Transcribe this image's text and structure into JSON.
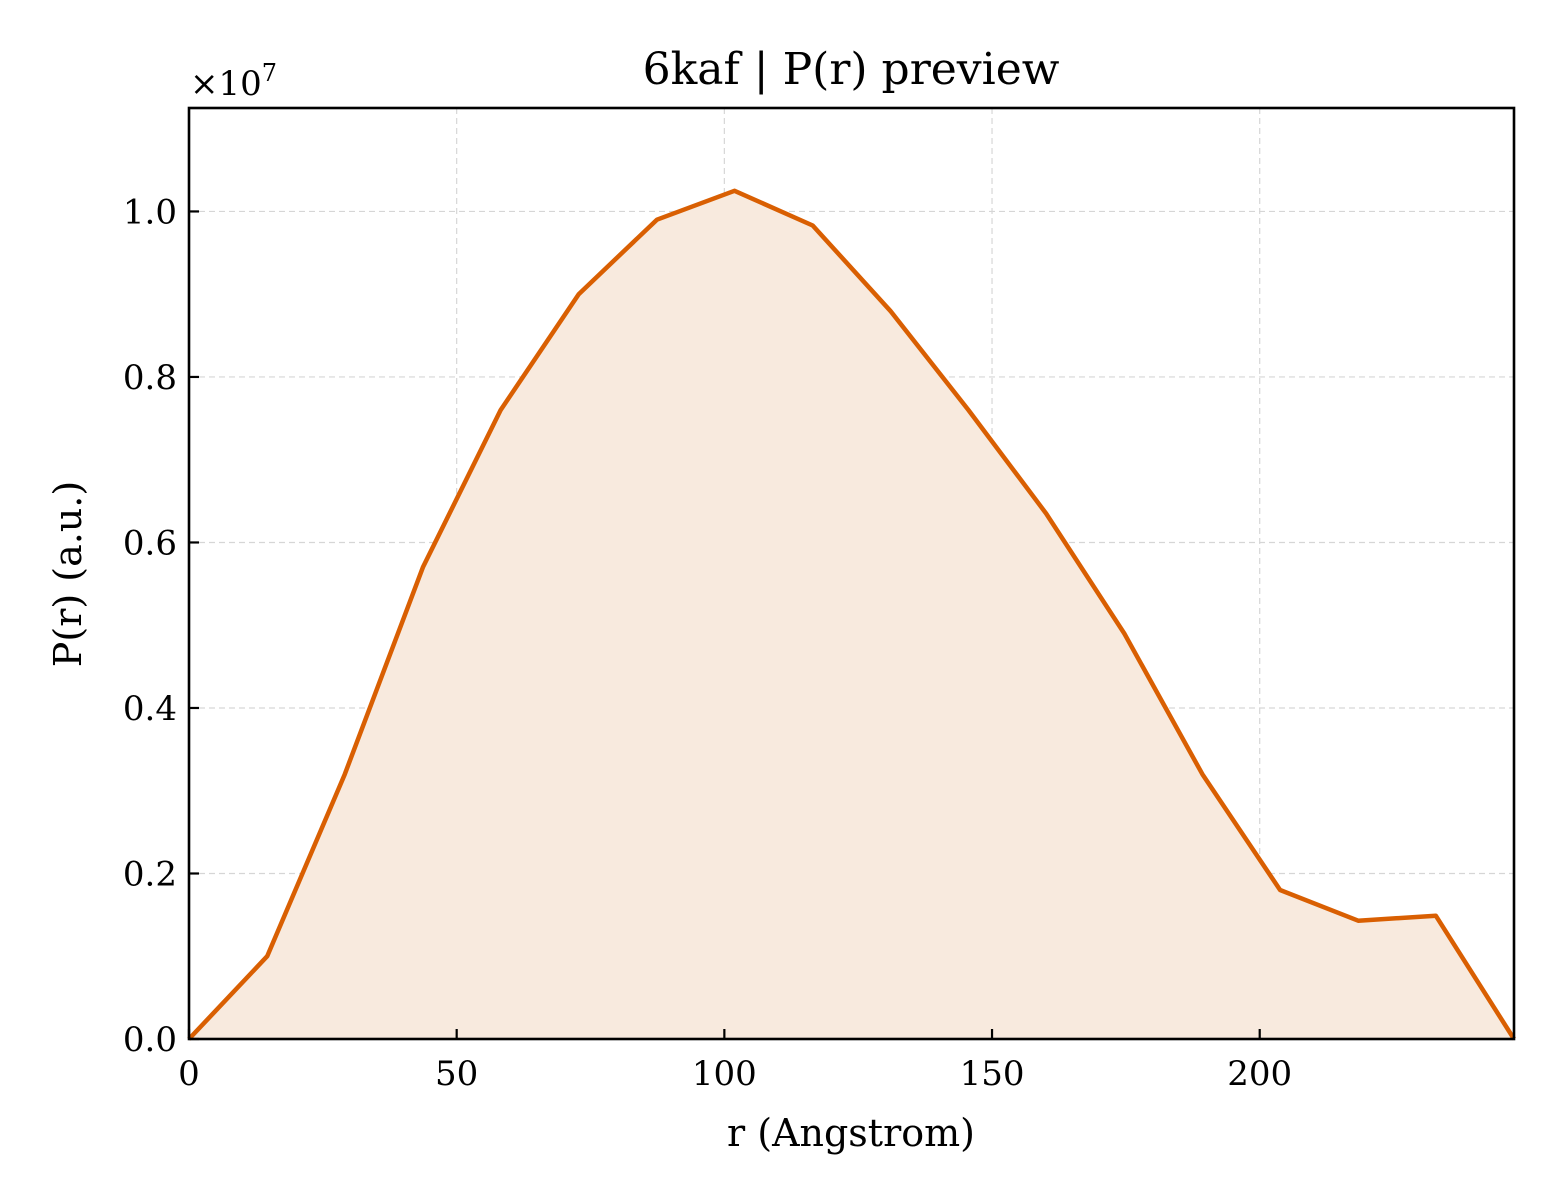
{
  "chart_data": {
    "type": "area",
    "title": "6kaf | P(r) preview",
    "xlabel": "r (Angstrom)",
    "ylabel": "P(r) (a.u.)",
    "y_multiplier_label": "×10",
    "y_multiplier_exponent": "7",
    "xlim": [
      0,
      247.5
    ],
    "ylim": [
      0,
      1.125
    ],
    "xticks": [
      0,
      50,
      100,
      150,
      200
    ],
    "xtick_labels": [
      "0",
      "50",
      "100",
      "150",
      "200"
    ],
    "yticks": [
      0.0,
      0.2,
      0.4,
      0.6,
      0.8,
      1.0
    ],
    "ytick_labels": [
      "0.0",
      "0.2",
      "0.4",
      "0.6",
      "0.8",
      "1.0"
    ],
    "grid": true,
    "series": [
      {
        "x": [
          0,
          14.6,
          29.1,
          43.7,
          58.2,
          72.8,
          87.4,
          101.9,
          116.5,
          131.0,
          145.6,
          160.1,
          174.7,
          189.3,
          203.8,
          218.4,
          232.9,
          247.5
        ],
        "y": [
          0.0,
          0.1,
          0.32,
          0.57,
          0.76,
          0.9,
          0.99,
          1.025,
          0.983,
          0.88,
          0.76,
          0.635,
          0.49,
          0.32,
          0.18,
          0.143,
          0.149,
          0.0
        ]
      }
    ],
    "colors": {
      "line": "#d95f02",
      "fill": "#f8eade",
      "axes": "#000000",
      "grid": "#d6d6d6"
    }
  }
}
